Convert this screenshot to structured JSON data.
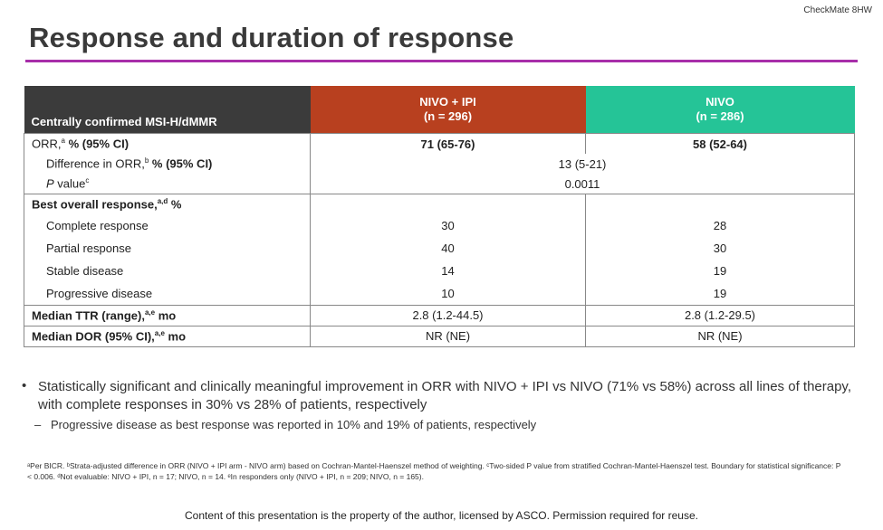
{
  "tag": "CheckMate 8HW",
  "title": "Response and duration of response",
  "table": {
    "header_label": "Centrally confirmed MSI-H/dMMR",
    "arm_a": {
      "name": "NIVO + IPI",
      "n": "(n = 296)"
    },
    "arm_b": {
      "name": "NIVO",
      "n": "(n = 286)"
    },
    "orr": {
      "label": "ORR,",
      "sup": "a",
      "label_rest": " % (95% CI)",
      "a": "71 (65-76)",
      "b": "58 (52-64)"
    },
    "diff": {
      "label": "Difference in ORR,",
      "sup": "b",
      "label_rest": " % (95% CI)",
      "value": "13 (5-21)"
    },
    "pval": {
      "label": "P",
      "label_rest": " value",
      "sup": "c",
      "value": "0.0011"
    },
    "bor": {
      "label": "Best overall response,",
      "sup": "a,d",
      "label_rest": " %"
    },
    "bor_rows": [
      {
        "label": "Complete response",
        "a": "30",
        "b": "28"
      },
      {
        "label": "Partial response",
        "a": "40",
        "b": "30"
      },
      {
        "label": "Stable disease",
        "a": "14",
        "b": "19"
      },
      {
        "label": "Progressive disease",
        "a": "10",
        "b": "19"
      }
    ],
    "ttr": {
      "label": "Median TTR (range),",
      "sup": "a,e",
      "label_rest": " mo",
      "a": "2.8 (1.2-44.5)",
      "b": "2.8 (1.2-29.5)"
    },
    "dor": {
      "label": "Median DOR (95% CI),",
      "sup": "a,e",
      "label_rest": " mo",
      "a": "NR (NE)",
      "b": "NR (NE)"
    }
  },
  "bullet1": "Statistically significant and clinically meaningful improvement in ORR with NIVO + IPI vs NIVO (71% vs 58%) across all lines of therapy, with complete responses in 30% vs 28% of patients, respectively",
  "bullet2": "Progressive disease as best response was reported in 10% and 19% of patients, respectively",
  "footnote": "ᵃPer BICR. ᵇStrata-adjusted difference in ORR (NIVO + IPI arm - NIVO arm) based on Cochran-Mantel-Haenszel method of weighting. ᶜTwo-sided P value from stratified Cochran-Mantel-Haenszel test. Boundary for statistical significance: P < 0.006. ᵈNot evaluable: NIVO + IPI, n = 17; NIVO, n = 14. ᵉIn responders only (NIVO + IPI, n = 209; NIVO, n = 165).",
  "copyright": "Content of this presentation is the property of the author, licensed by ASCO. Permission required for reuse."
}
